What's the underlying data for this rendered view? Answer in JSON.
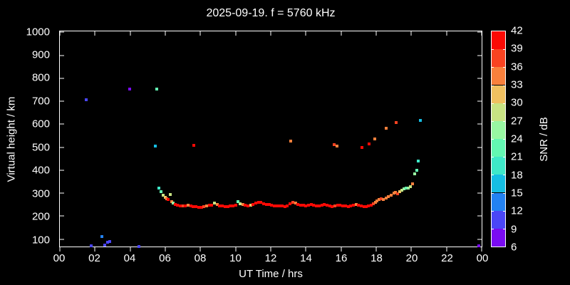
{
  "chart_data": {
    "type": "scatter",
    "title": "2025-09-19. f = 5760 kHz",
    "xlabel": "UT Time / hrs",
    "ylabel": "Virtual height / km",
    "xlim_hours": [
      0,
      24
    ],
    "ylim_km": [
      67,
      1005
    ],
    "grid": false,
    "x_tick_labels": [
      "00",
      "02",
      "04",
      "06",
      "08",
      "10",
      "12",
      "14",
      "16",
      "18",
      "20",
      "22",
      "00"
    ],
    "y_tick_values": [
      1000,
      900,
      800,
      700,
      600,
      500,
      400,
      300,
      200,
      100
    ],
    "colorbar": {
      "label": "SNR / dB",
      "min_db": 6,
      "max_db": 42,
      "step_db": 3,
      "tick_labels": [
        "42",
        "39",
        "36",
        "33",
        "30",
        "27",
        "24",
        "21",
        "18",
        "15",
        "12",
        "9",
        "6"
      ],
      "colors_top_to_bottom": [
        "#fa0a05",
        "#f94321",
        "#f9803c",
        "#f0c060",
        "#c8e383",
        "#98f7a2",
        "#63f7b2",
        "#3ee8c8",
        "#15bee3",
        "#2382f2",
        "#4a46f7",
        "#7a0bf2"
      ]
    },
    "points_format": [
      "ut_hours",
      "virtual_height_km",
      "snr_db"
    ],
    "points": [
      [
        1.5,
        706,
        10
      ],
      [
        1.78,
        70,
        10
      ],
      [
        2.4,
        111,
        13
      ],
      [
        2.55,
        74,
        10
      ],
      [
        2.7,
        86,
        10
      ],
      [
        2.82,
        89,
        10
      ],
      [
        3.98,
        752,
        7
      ],
      [
        4.5,
        68,
        10
      ],
      [
        5.45,
        504,
        16
      ],
      [
        5.52,
        753,
        22
      ],
      [
        5.62,
        322,
        19
      ],
      [
        5.75,
        305,
        22
      ],
      [
        5.88,
        290,
        28
      ],
      [
        5.98,
        282,
        31
      ],
      [
        6.08,
        276,
        34
      ],
      [
        6.18,
        271,
        40
      ],
      [
        6.28,
        295,
        28
      ],
      [
        6.35,
        264,
        34
      ],
      [
        6.45,
        257,
        25
      ],
      [
        6.55,
        251,
        40
      ],
      [
        6.7,
        247,
        40
      ],
      [
        6.85,
        245,
        40
      ],
      [
        7.0,
        244,
        37
      ],
      [
        7.15,
        245,
        40
      ],
      [
        7.3,
        247,
        34
      ],
      [
        7.45,
        245,
        40
      ],
      [
        7.6,
        242,
        40
      ],
      [
        7.62,
        508,
        40
      ],
      [
        7.75,
        240,
        40
      ],
      [
        7.9,
        238,
        40
      ],
      [
        8.05,
        237,
        40
      ],
      [
        8.2,
        240,
        37
      ],
      [
        8.35,
        244,
        34
      ],
      [
        8.5,
        247,
        40
      ],
      [
        8.65,
        248,
        40
      ],
      [
        8.8,
        256,
        28
      ],
      [
        8.95,
        250,
        34
      ],
      [
        9.1,
        246,
        40
      ],
      [
        9.25,
        244,
        40
      ],
      [
        9.4,
        242,
        40
      ],
      [
        9.55,
        241,
        40
      ],
      [
        9.7,
        243,
        40
      ],
      [
        9.85,
        245,
        40
      ],
      [
        10.0,
        248,
        40
      ],
      [
        10.15,
        264,
        22
      ],
      [
        10.25,
        253,
        28
      ],
      [
        10.4,
        250,
        34
      ],
      [
        10.55,
        247,
        40
      ],
      [
        10.7,
        245,
        40
      ],
      [
        10.85,
        248,
        31
      ],
      [
        11.0,
        252,
        40
      ],
      [
        11.15,
        257,
        40
      ],
      [
        11.3,
        261,
        40
      ],
      [
        11.45,
        259,
        40
      ],
      [
        11.6,
        255,
        40
      ],
      [
        11.75,
        252,
        40
      ],
      [
        11.9,
        250,
        40
      ],
      [
        12.05,
        248,
        40
      ],
      [
        12.2,
        246,
        40
      ],
      [
        12.35,
        244,
        40
      ],
      [
        12.5,
        246,
        40
      ],
      [
        12.65,
        243,
        40
      ],
      [
        12.8,
        241,
        40
      ],
      [
        12.95,
        245,
        40
      ],
      [
        13.1,
        255,
        40
      ],
      [
        13.15,
        528,
        34
      ],
      [
        13.25,
        259,
        37
      ],
      [
        13.4,
        257,
        34
      ],
      [
        13.55,
        252,
        40
      ],
      [
        13.7,
        249,
        40
      ],
      [
        13.85,
        247,
        40
      ],
      [
        14.0,
        246,
        40
      ],
      [
        14.15,
        248,
        40
      ],
      [
        14.3,
        250,
        40
      ],
      [
        14.45,
        247,
        40
      ],
      [
        14.6,
        245,
        40
      ],
      [
        14.75,
        246,
        40
      ],
      [
        14.9,
        248,
        40
      ],
      [
        15.05,
        250,
        40
      ],
      [
        15.2,
        247,
        40
      ],
      [
        15.35,
        244,
        40
      ],
      [
        15.5,
        242,
        40
      ],
      [
        15.6,
        512,
        37
      ],
      [
        15.65,
        245,
        37
      ],
      [
        15.78,
        505,
        34
      ],
      [
        15.8,
        247,
        40
      ],
      [
        15.95,
        249,
        40
      ],
      [
        16.1,
        246,
        40
      ],
      [
        16.25,
        243,
        40
      ],
      [
        16.4,
        241,
        40
      ],
      [
        16.55,
        244,
        40
      ],
      [
        16.7,
        247,
        40
      ],
      [
        16.85,
        250,
        34
      ],
      [
        17.0,
        248,
        40
      ],
      [
        17.15,
        245,
        40
      ],
      [
        17.2,
        500,
        40
      ],
      [
        17.3,
        242,
        40
      ],
      [
        17.45,
        240,
        40
      ],
      [
        17.55,
        243,
        40
      ],
      [
        17.6,
        515,
        40
      ],
      [
        17.7,
        249,
        40
      ],
      [
        17.82,
        255,
        37
      ],
      [
        17.9,
        537,
        34
      ],
      [
        17.95,
        261,
        34
      ],
      [
        18.05,
        267,
        34
      ],
      [
        18.18,
        273,
        34
      ],
      [
        18.3,
        277,
        37
      ],
      [
        18.42,
        271,
        34
      ],
      [
        18.55,
        279,
        34
      ],
      [
        18.55,
        582,
        34
      ],
      [
        18.7,
        285,
        34
      ],
      [
        18.85,
        292,
        34
      ],
      [
        19.0,
        299,
        34
      ],
      [
        19.1,
        303,
        34
      ],
      [
        19.15,
        608,
        37
      ],
      [
        19.2,
        296,
        37
      ],
      [
        19.32,
        307,
        31
      ],
      [
        19.45,
        314,
        28
      ],
      [
        19.58,
        318,
        25
      ],
      [
        19.7,
        321,
        22
      ],
      [
        19.82,
        323,
        25
      ],
      [
        19.95,
        327,
        28
      ],
      [
        20.06,
        341,
        34
      ],
      [
        20.18,
        383,
        25
      ],
      [
        20.3,
        400,
        22
      ],
      [
        20.4,
        441,
        19
      ],
      [
        20.5,
        618,
        16
      ],
      [
        23.82,
        70,
        7
      ]
    ]
  }
}
